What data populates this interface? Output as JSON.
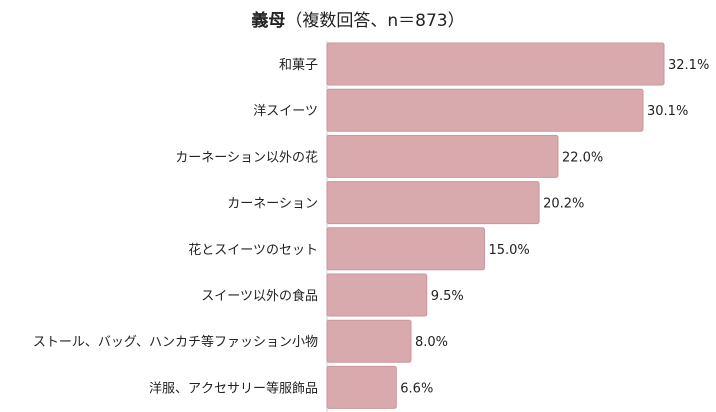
{
  "chart_data": {
    "type": "bar",
    "orientation": "horizontal",
    "title": "義母",
    "subtitle": "（複数回答、n＝873）",
    "categories": [
      "和菓子",
      "洋スイーツ",
      "カーネーション以外の花",
      "カーネーション",
      "花とスイーツのセット",
      "スイーツ以外の食品",
      "ストール、バッグ、ハンカチ等ファッション小物",
      "洋服、アクセサリー等服飾品"
    ],
    "values": [
      32.1,
      30.1,
      22.0,
      20.2,
      15.0,
      9.5,
      8.0,
      6.6
    ],
    "value_labels": [
      "32.1%",
      "30.1%",
      "22.0%",
      "20.2%",
      "15.0%",
      "9.5%",
      "8.0%",
      "6.6%"
    ],
    "xlim": [
      0,
      32.1
    ],
    "grid": false,
    "legend": "none",
    "bar_color": "#d9aaad",
    "bar_edge_color": "#c99599"
  }
}
